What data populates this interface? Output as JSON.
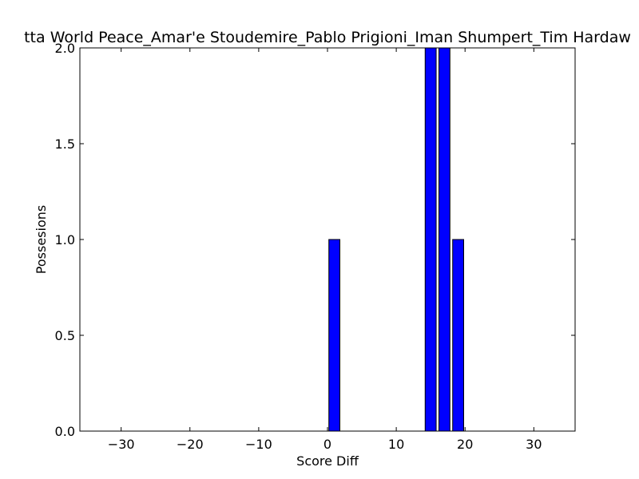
{
  "chart_data": {
    "type": "bar",
    "title": "tta World Peace_Amar'e Stoudemire_Pablo Prigioni_Iman Shumpert_Tim Hardaw",
    "xlabel": "Score Diff",
    "ylabel": "Possesions",
    "xlim": [
      -36,
      36
    ],
    "ylim": [
      0,
      2
    ],
    "bar_width": 1.6,
    "bar_color": "#0000ff",
    "x_ticks": [
      -30,
      -20,
      -10,
      0,
      10,
      20,
      30
    ],
    "x_tick_labels": [
      "−30",
      "−20",
      "−10",
      "0",
      "10",
      "20",
      "30"
    ],
    "y_ticks": [
      0.0,
      0.5,
      1.0,
      1.5,
      2.0
    ],
    "y_tick_labels": [
      "0.0",
      "0.5",
      "1.0",
      "1.5",
      "2.0"
    ],
    "x": [
      -35,
      -33,
      -31,
      -29,
      -27,
      -25,
      -23,
      -21,
      -19,
      -17,
      -15,
      -13,
      -11,
      -9,
      -7,
      -5,
      -3,
      -1,
      1,
      3,
      5,
      7,
      9,
      11,
      13,
      15,
      17,
      19,
      21,
      23,
      25,
      27,
      29,
      31,
      33,
      35
    ],
    "values": [
      0,
      0,
      0,
      0,
      0,
      0,
      0,
      0,
      0,
      0,
      0,
      0,
      0,
      0,
      0,
      0,
      0,
      0,
      1,
      0,
      0,
      0,
      0,
      0,
      0,
      2,
      2,
      1,
      0,
      0,
      0,
      0,
      0,
      0,
      0,
      0
    ],
    "grid": false,
    "legend": "none"
  }
}
